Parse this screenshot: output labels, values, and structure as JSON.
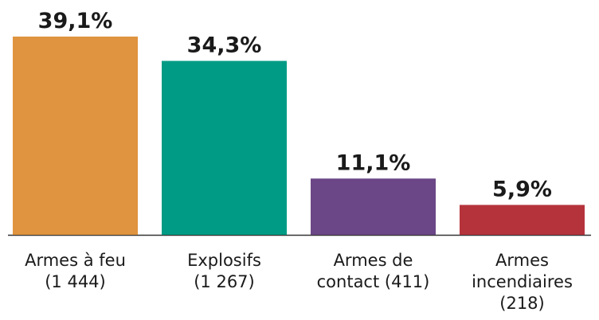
{
  "chart_data": {
    "type": "bar",
    "categories": [
      [
        "Armes à feu",
        "(1 444)"
      ],
      [
        "Explosifs",
        "(1 267)"
      ],
      [
        "Armes de",
        "contact (411)"
      ],
      [
        "Armes",
        "incendiaires",
        "(218)"
      ]
    ],
    "values": [
      39.1,
      34.3,
      11.1,
      5.9
    ],
    "value_labels": [
      "39,1%",
      "34,3%",
      "11,1%",
      "5,9%"
    ],
    "colors": [
      "#e0943f",
      "#009b84",
      "#6b4787",
      "#b5343c"
    ]
  }
}
